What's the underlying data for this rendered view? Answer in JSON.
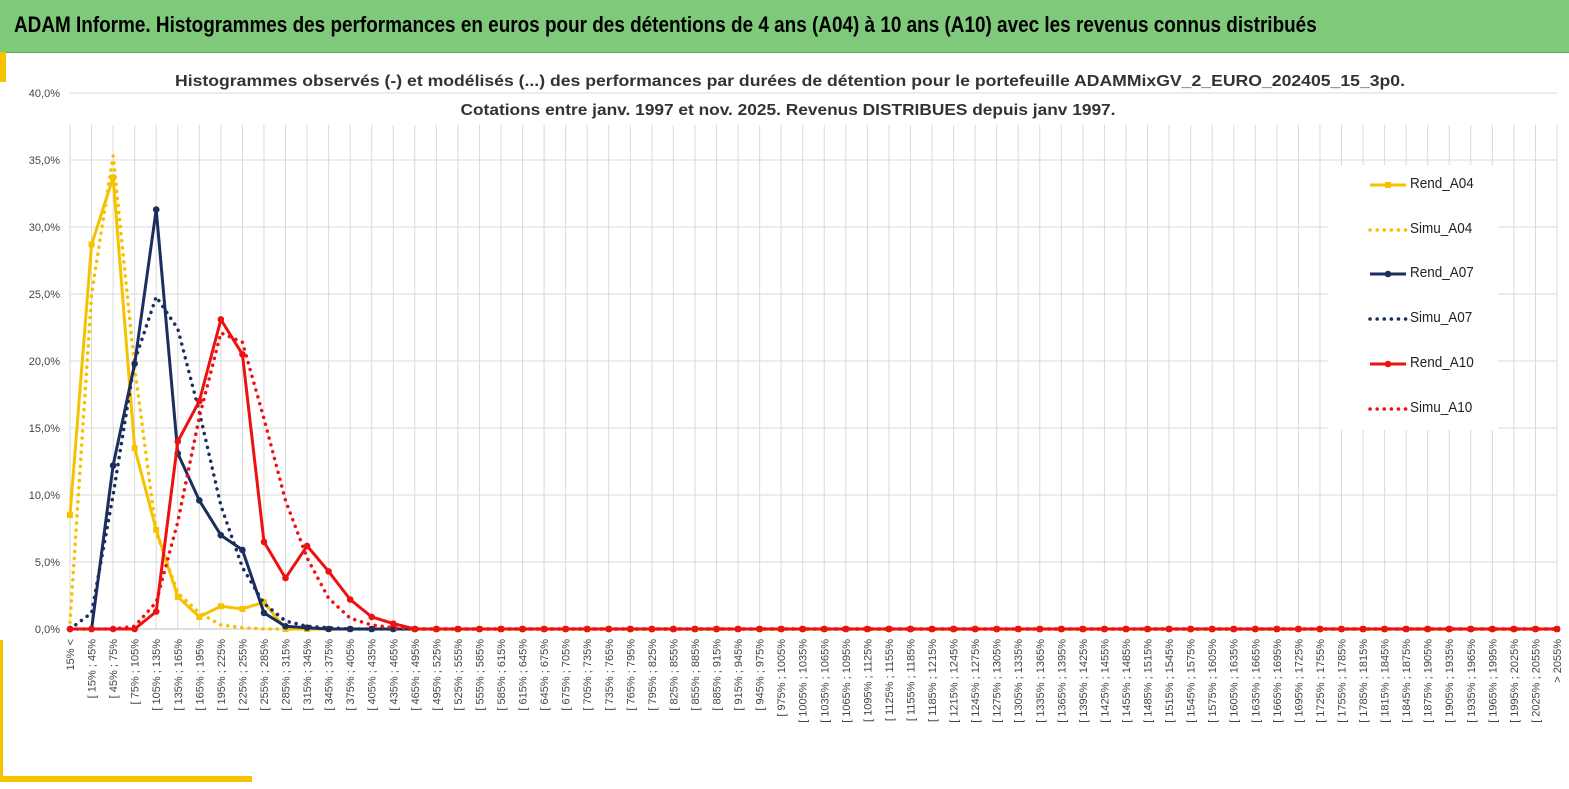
{
  "header": {
    "title": "ADAM Informe. Histogrammes des performances en euros pour des détentions de 4 ans (A04) à 10 ans (A10) avec les revenus connus distribués"
  },
  "colors": {
    "banner": "#7fc97a",
    "accent": "#f5c200",
    "a04": "#f5c200",
    "a07": "#1b2e5e",
    "a10": "#ee1111",
    "grid": "#d9d9d9"
  },
  "chart_data": {
    "type": "line",
    "title": "Histogrammes observés (-) et modélisés (...) des performances par durées de détention pour le portefeuille ADAMMixGV_2_EURO_202405_15_3p0.",
    "subtitle": "Cotations entre janv. 1997 et nov. 2025. Revenus DISTRIBUES depuis janv 1997.",
    "ylim": [
      0,
      40
    ],
    "yticks": [
      "0,0%",
      "5,0%",
      "10,0%",
      "15,0%",
      "20,0%",
      "25,0%",
      "30,0%",
      "35,0%",
      "40,0%"
    ],
    "grid": true,
    "legend_position": "right",
    "categories": [
      "15% <",
      "[ 15% ; 45%",
      "[ 45% ; 75%",
      "[ 75% ; 105%",
      "[ 105% ; 135%",
      "[ 135% ; 165%",
      "[ 165% ; 195%",
      "[ 195% ; 225%",
      "[ 225% ; 255%",
      "[ 255% ; 285%",
      "[ 285% ; 315%",
      "[ 315% ; 345%",
      "[ 345% ; 375%",
      "[ 375% ; 405%",
      "[ 405% ; 435%",
      "[ 435% ; 465%",
      "[ 465% ; 495%",
      "[ 495% ; 525%",
      "[ 525% ; 555%",
      "[ 555% ; 585%",
      "[ 585% ; 615%",
      "[ 615% ; 645%",
      "[ 645% ; 675%",
      "[ 675% ; 705%",
      "[ 705% ; 735%",
      "[ 735% ; 765%",
      "[ 765% ; 795%",
      "[ 795% ; 825%",
      "[ 825% ; 855%",
      "[ 855% ; 885%",
      "[ 885% ; 915%",
      "[ 915% ; 945%",
      "[ 945% ; 975%",
      "[ 975% ; 1005%",
      "[ 1005% ; 1035%",
      "[ 1035% ; 1065%",
      "[ 1065% ; 1095%",
      "[ 1095% ; 1125%",
      "[ 1125% ; 1155%",
      "[ 1155% ; 1185%",
      "[ 1185% ; 1215%",
      "[ 1215% ; 1245%",
      "[ 1245% ; 1275%",
      "[ 1275% ; 1305%",
      "[ 1305% ; 1335%",
      "[ 1335% ; 1365%",
      "[ 1365% ; 1395%",
      "[ 1395% ; 1425%",
      "[ 1425% ; 1455%",
      "[ 1455% ; 1485%",
      "[ 1485% ; 1515%",
      "[ 1515% ; 1545%",
      "[ 1545% ; 1575%",
      "[ 1575% ; 1605%",
      "[ 1605% ; 1635%",
      "[ 1635% ; 1665%",
      "[ 1665% ; 1695%",
      "[ 1695% ; 1725%",
      "[ 1725% ; 1755%",
      "[ 1755% ; 1785%",
      "[ 1785% ; 1815%",
      "[ 1815% ; 1845%",
      "[ 1845% ; 1875%",
      "[ 1875% ; 1905%",
      "[ 1905% ; 1935%",
      "[ 1935% ; 1965%",
      "[ 1965% ; 1995%",
      "[ 1995% ; 2025%",
      "[ 2025% ; 2055%",
      "> 2055%"
    ],
    "series": [
      {
        "name": "Rend_A04",
        "style": "solid",
        "marker": "square",
        "color": "#f5c200",
        "values": [
          8.5,
          28.7,
          33.7,
          13.5,
          7.4,
          2.4,
          0.9,
          1.7,
          1.5,
          2.0,
          0.0,
          0.0,
          0.0,
          0.0,
          0.0,
          0.0,
          0.0,
          0.0,
          0.0,
          0.0,
          0.0,
          0.0,
          0.0,
          0.0,
          0.0,
          0.0,
          0.0,
          0.0,
          0.0,
          0.0,
          0.0,
          0.0,
          0.0,
          0.0,
          0.0,
          0.0,
          0.0,
          0.0,
          0.0,
          0.0,
          0.0,
          0.0,
          0.0,
          0.0,
          0.0,
          0.0,
          0.0,
          0.0,
          0.0,
          0.0,
          0.0,
          0.0,
          0.0,
          0.0,
          0.0,
          0.0,
          0.0,
          0.0,
          0.0,
          0.0,
          0.0,
          0.0,
          0.0,
          0.0,
          0.0,
          0.0,
          0.0,
          0.0,
          0.0,
          0.0
        ]
      },
      {
        "name": "Simu_A04",
        "style": "dotted",
        "marker": "none",
        "color": "#f5c200",
        "values": [
          0.5,
          25.0,
          35.3,
          19.5,
          7.2,
          2.7,
          1.2,
          0.3,
          0.1,
          0.0,
          0.0,
          0.0,
          0.0,
          0.0,
          0.0,
          0.0,
          0.0,
          0.0,
          0.0,
          0.0,
          0.0,
          0.0,
          0.0,
          0.0,
          0.0,
          0.0,
          0.0,
          0.0,
          0.0,
          0.0,
          0.0,
          0.0,
          0.0,
          0.0,
          0.0,
          0.0,
          0.0,
          0.0,
          0.0,
          0.0,
          0.0,
          0.0,
          0.0,
          0.0,
          0.0,
          0.0,
          0.0,
          0.0,
          0.0,
          0.0,
          0.0,
          0.0,
          0.0,
          0.0,
          0.0,
          0.0,
          0.0,
          0.0,
          0.0,
          0.0,
          0.0,
          0.0,
          0.0,
          0.0,
          0.0,
          0.0,
          0.0,
          0.0,
          0.0,
          0.0
        ]
      },
      {
        "name": "Rend_A07",
        "style": "solid",
        "marker": "circle",
        "color": "#1b2e5e",
        "values": [
          0.0,
          0.0,
          12.2,
          19.8,
          31.3,
          13.1,
          9.6,
          7.0,
          5.9,
          1.2,
          0.2,
          0.1,
          0.0,
          0.0,
          0.0,
          0.0,
          0.0,
          0.0,
          0.0,
          0.0,
          0.0,
          0.0,
          0.0,
          0.0,
          0.0,
          0.0,
          0.0,
          0.0,
          0.0,
          0.0,
          0.0,
          0.0,
          0.0,
          0.0,
          0.0,
          0.0,
          0.0,
          0.0,
          0.0,
          0.0,
          0.0,
          0.0,
          0.0,
          0.0,
          0.0,
          0.0,
          0.0,
          0.0,
          0.0,
          0.0,
          0.0,
          0.0,
          0.0,
          0.0,
          0.0,
          0.0,
          0.0,
          0.0,
          0.0,
          0.0,
          0.0,
          0.0,
          0.0,
          0.0,
          0.0,
          0.0,
          0.0,
          0.0,
          0.0,
          0.0
        ]
      },
      {
        "name": "Simu_A07",
        "style": "dotted",
        "marker": "none",
        "color": "#1b2e5e",
        "values": [
          0.0,
          1.2,
          10.0,
          20.0,
          24.8,
          22.4,
          16.2,
          9.2,
          4.6,
          1.9,
          0.6,
          0.2,
          0.1,
          0.0,
          0.0,
          0.0,
          0.0,
          0.0,
          0.0,
          0.0,
          0.0,
          0.0,
          0.0,
          0.0,
          0.0,
          0.0,
          0.0,
          0.0,
          0.0,
          0.0,
          0.0,
          0.0,
          0.0,
          0.0,
          0.0,
          0.0,
          0.0,
          0.0,
          0.0,
          0.0,
          0.0,
          0.0,
          0.0,
          0.0,
          0.0,
          0.0,
          0.0,
          0.0,
          0.0,
          0.0,
          0.0,
          0.0,
          0.0,
          0.0,
          0.0,
          0.0,
          0.0,
          0.0,
          0.0,
          0.0,
          0.0,
          0.0,
          0.0,
          0.0,
          0.0,
          0.0,
          0.0,
          0.0,
          0.0,
          0.0
        ]
      },
      {
        "name": "Rend_A10",
        "style": "solid",
        "marker": "circle",
        "color": "#ee1111",
        "values": [
          0.0,
          0.0,
          0.0,
          0.0,
          1.3,
          14.0,
          17.0,
          23.1,
          20.5,
          6.5,
          3.8,
          6.2,
          4.3,
          2.2,
          0.9,
          0.4,
          0.0,
          0.0,
          0.0,
          0.0,
          0.0,
          0.0,
          0.0,
          0.0,
          0.0,
          0.0,
          0.0,
          0.0,
          0.0,
          0.0,
          0.0,
          0.0,
          0.0,
          0.0,
          0.0,
          0.0,
          0.0,
          0.0,
          0.0,
          0.0,
          0.0,
          0.0,
          0.0,
          0.0,
          0.0,
          0.0,
          0.0,
          0.0,
          0.0,
          0.0,
          0.0,
          0.0,
          0.0,
          0.0,
          0.0,
          0.0,
          0.0,
          0.0,
          0.0,
          0.0,
          0.0,
          0.0,
          0.0,
          0.0,
          0.0,
          0.0,
          0.0,
          0.0,
          0.0,
          0.0
        ]
      },
      {
        "name": "Simu_A10",
        "style": "dotted",
        "marker": "none",
        "color": "#ee1111",
        "values": [
          0.0,
          0.0,
          0.0,
          0.2,
          2.0,
          8.0,
          15.8,
          22.1,
          21.4,
          15.7,
          9.6,
          5.3,
          2.3,
          0.8,
          0.3,
          0.1,
          0.0,
          0.0,
          0.0,
          0.0,
          0.0,
          0.0,
          0.0,
          0.0,
          0.0,
          0.0,
          0.0,
          0.0,
          0.0,
          0.0,
          0.0,
          0.0,
          0.0,
          0.0,
          0.0,
          0.0,
          0.0,
          0.0,
          0.0,
          0.0,
          0.0,
          0.0,
          0.0,
          0.0,
          0.0,
          0.0,
          0.0,
          0.0,
          0.0,
          0.0,
          0.0,
          0.0,
          0.0,
          0.0,
          0.0,
          0.0,
          0.0,
          0.0,
          0.0,
          0.0,
          0.0,
          0.0,
          0.0,
          0.0,
          0.0,
          0.0,
          0.0,
          0.0,
          0.0,
          0.0
        ]
      }
    ]
  }
}
